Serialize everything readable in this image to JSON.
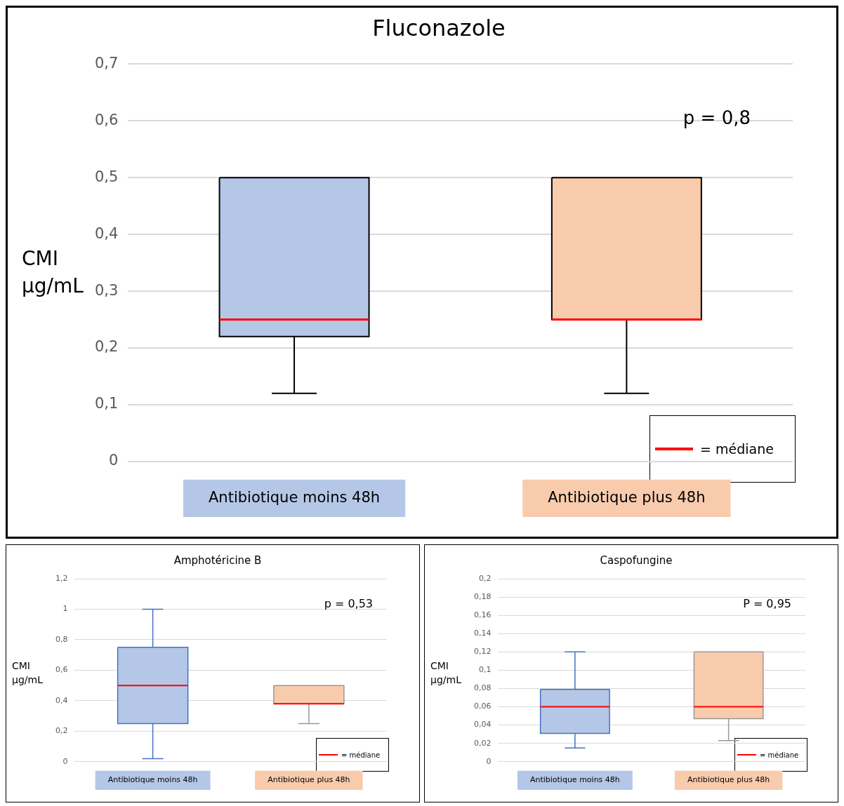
{
  "chart_data": [
    {
      "type": "box",
      "title": "Fluconazole",
      "ylabel": "CMI µg/mL",
      "categories": [
        "Antibiotique moins 48h",
        "Antibiotique plus 48h"
      ],
      "colors": [
        "#b4c7e7",
        "#f8cbad"
      ],
      "boxes": [
        {
          "low": 0.12,
          "q1": 0.22,
          "median": 0.25,
          "q3": 0.5,
          "high": 0.5
        },
        {
          "low": 0.12,
          "q1": 0.25,
          "median": 0.25,
          "q3": 0.5,
          "high": 0.5
        }
      ],
      "ylim": [
        0,
        0.7
      ],
      "yticks": [
        {
          "value": 0,
          "label": "0"
        },
        {
          "value": 0.1,
          "label": "0,1"
        },
        {
          "value": 0.2,
          "label": "0,2"
        },
        {
          "value": 0.3,
          "label": "0,3"
        },
        {
          "value": 0.4,
          "label": "0,4"
        },
        {
          "value": 0.5,
          "label": "0,5"
        },
        {
          "value": 0.6,
          "label": "0,6"
        },
        {
          "value": 0.7,
          "label": "0,7"
        }
      ],
      "grid": "y",
      "annotations": [
        "p = 0,8",
        "= médiane"
      ]
    },
    {
      "type": "box",
      "title": "Amphotéricine B",
      "ylabel": "CMI µg/mL",
      "categories": [
        "Antibiotique moins 48h",
        "Antibiotique plus 48h"
      ],
      "colors": [
        "#b4c7e7",
        "#f8cbad"
      ],
      "boxes": [
        {
          "low": 0.02,
          "q1": 0.25,
          "median": 0.5,
          "q3": 0.75,
          "high": 1
        },
        {
          "low": 0.25,
          "q1": 0.38,
          "median": 0.38,
          "q3": 0.5,
          "high": 0.5
        }
      ],
      "ylim": [
        0,
        1.2
      ],
      "yticks": [
        {
          "value": 0,
          "label": "0"
        },
        {
          "value": 0.2,
          "label": "0,2"
        },
        {
          "value": 0.4,
          "label": "0,4"
        },
        {
          "value": 0.6,
          "label": "0,6"
        },
        {
          "value": 0.8,
          "label": "0,8"
        },
        {
          "value": 1,
          "label": "1"
        },
        {
          "value": 1.2,
          "label": "1,2"
        }
      ],
      "grid": "y",
      "annotations": [
        "p = 0,53",
        "= médiane"
      ]
    },
    {
      "type": "box",
      "title": "Caspofungine",
      "ylabel": "CMI µg/mL",
      "categories": [
        "Antibiotique moins 48h",
        "Antibiotique plus 48h"
      ],
      "colors": [
        "#b4c7e7",
        "#f8cbad"
      ],
      "boxes": [
        {
          "low": 0.015,
          "q1": 0.031,
          "median": 0.06,
          "q3": 0.079,
          "high": 0.12
        },
        {
          "low": 0.023,
          "q1": 0.047,
          "median": 0.06,
          "q3": 0.12,
          "high": 0.12
        }
      ],
      "ylim": [
        0,
        0.2
      ],
      "yticks": [
        {
          "value": 0,
          "label": "0"
        },
        {
          "value": 0.02,
          "label": "0,02"
        },
        {
          "value": 0.04,
          "label": "0,04"
        },
        {
          "value": 0.06,
          "label": "0,06"
        },
        {
          "value": 0.08,
          "label": "0,08"
        },
        {
          "value": 0.1,
          "label": "0,1"
        },
        {
          "value": 0.12,
          "label": "0,12"
        },
        {
          "value": 0.14,
          "label": "0,14"
        },
        {
          "value": 0.16,
          "label": "0,16"
        },
        {
          "value": 0.18,
          "label": "0,18"
        },
        {
          "value": 0.2,
          "label": "0,2"
        }
      ],
      "grid": "y",
      "annotations": [
        "P = 0,95",
        "= médiane"
      ]
    }
  ]
}
